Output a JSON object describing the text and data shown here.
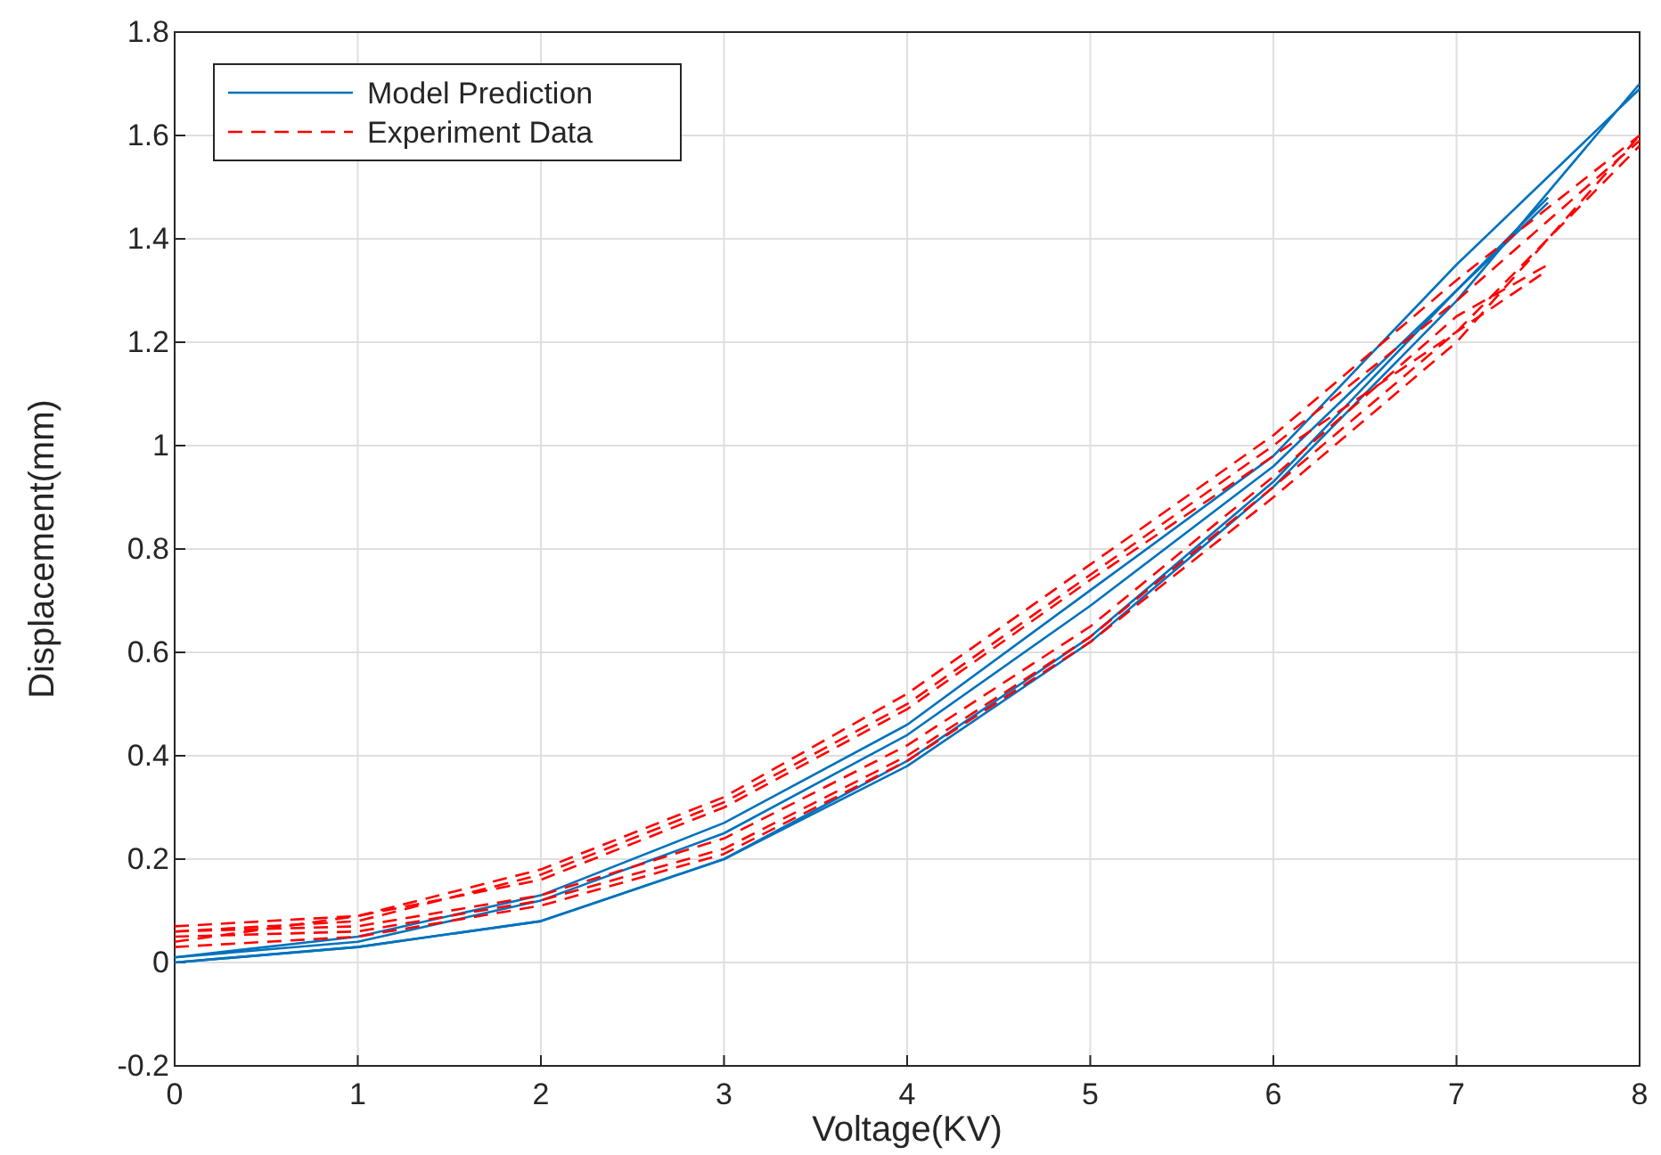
{
  "chart_data": {
    "type": "line",
    "xlabel": "Voltage(KV)",
    "ylabel": "Displacement(mm)",
    "xlim": [
      0,
      8
    ],
    "ylim": [
      -0.2,
      1.8
    ],
    "xticks": [
      0,
      1,
      2,
      3,
      4,
      5,
      6,
      7,
      8
    ],
    "yticks": [
      -0.2,
      0,
      0.2,
      0.4,
      0.6,
      0.8,
      1,
      1.2,
      1.4,
      1.6,
      1.8
    ],
    "grid": true,
    "legend": "top left",
    "series": [
      {
        "name": "Model Prediction",
        "color": "#0072bd",
        "line_style": "solid",
        "x": [
          0,
          1,
          2,
          3,
          4,
          5,
          6,
          7,
          8
        ],
        "values": [
          0,
          0.03,
          0.08,
          0.2,
          0.38,
          0.62,
          0.92,
          1.28,
          1.7
        ]
      },
      {
        "color": "#0072bd",
        "line_style": "solid",
        "x": [
          0,
          1,
          2,
          3,
          4,
          5,
          6,
          7,
          8
        ],
        "values": [
          0.01,
          0.05,
          0.13,
          0.27,
          0.46,
          0.72,
          0.98,
          1.35,
          1.69
        ]
      },
      {
        "color": "#0072bd",
        "line_style": "solid",
        "x": [
          0,
          1,
          2,
          3,
          4,
          5,
          6,
          7,
          7.5
        ],
        "values": [
          0,
          0.03,
          0.08,
          0.2,
          0.39,
          0.63,
          0.93,
          1.3,
          1.48
        ]
      },
      {
        "color": "#0072bd",
        "line_style": "solid",
        "x": [
          0,
          1,
          2,
          3,
          4,
          5,
          6,
          7,
          7.5
        ],
        "values": [
          0.01,
          0.04,
          0.12,
          0.25,
          0.44,
          0.69,
          0.96,
          1.3,
          1.47
        ]
      },
      {
        "name": "Experiment Data",
        "color": "#ff0000",
        "line_style": "dashed",
        "x": [
          0,
          1,
          2,
          3,
          4,
          5,
          6,
          7,
          8
        ],
        "values": [
          0.05,
          0.06,
          0.12,
          0.22,
          0.4,
          0.63,
          0.92,
          1.22,
          1.58
        ]
      },
      {
        "color": "#ff0000",
        "line_style": "dashed",
        "x": [
          0,
          1,
          2,
          3,
          4,
          5,
          6,
          7,
          8
        ],
        "values": [
          0.06,
          0.08,
          0.17,
          0.31,
          0.5,
          0.75,
          1.0,
          1.28,
          1.59
        ]
      },
      {
        "color": "#ff0000",
        "line_style": "dashed",
        "x": [
          0,
          1,
          2,
          3,
          4,
          5,
          6,
          7,
          8
        ],
        "values": [
          0.03,
          0.05,
          0.11,
          0.21,
          0.39,
          0.62,
          0.9,
          1.2,
          1.6
        ]
      },
      {
        "color": "#ff0000",
        "line_style": "dashed",
        "x": [
          0,
          1,
          2,
          3,
          4,
          5,
          6,
          7,
          8
        ],
        "values": [
          0.04,
          0.09,
          0.18,
          0.32,
          0.52,
          0.77,
          1.02,
          1.32,
          1.6
        ]
      },
      {
        "color": "#ff0000",
        "line_style": "dashed",
        "x": [
          0,
          1,
          2,
          3,
          4,
          5,
          6,
          7,
          7.5
        ],
        "values": [
          0.06,
          0.07,
          0.13,
          0.24,
          0.42,
          0.65,
          0.94,
          1.25,
          1.35
        ]
      },
      {
        "color": "#ff0000",
        "line_style": "dashed",
        "x": [
          0,
          1,
          2,
          3,
          4,
          5,
          6,
          7,
          7.5
        ],
        "values": [
          0.07,
          0.09,
          0.16,
          0.3,
          0.49,
          0.74,
          0.98,
          1.22,
          1.34
        ]
      }
    ]
  }
}
